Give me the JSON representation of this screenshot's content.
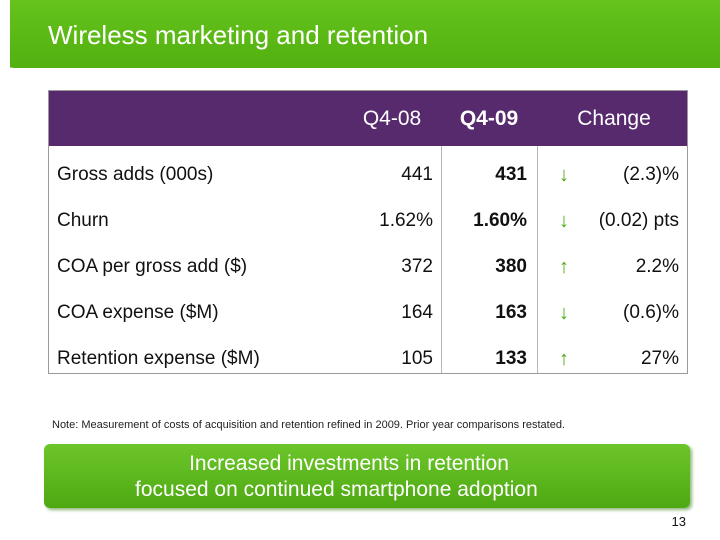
{
  "slide": {
    "title": "Wireless marketing and retention",
    "page_number": "13"
  },
  "table": {
    "headers": {
      "col1": "Q4-08",
      "col2": "Q4-09",
      "col3": "Change"
    },
    "rows": [
      {
        "label": "Gross adds (000s)",
        "q408": "441",
        "q409": "431",
        "arrow": "down",
        "change": "(2.3)%"
      },
      {
        "label": "Churn",
        "q408": "1.62%",
        "q409": "1.60%",
        "arrow": "down",
        "change": "(0.02) pts"
      },
      {
        "label": "COA per gross add ($)",
        "q408": "372",
        "q409": "380",
        "arrow": "up",
        "change": "2.2%"
      },
      {
        "label": "COA expense ($M)",
        "q408": "164",
        "q409": "163",
        "arrow": "down",
        "change": "(0.6)%"
      },
      {
        "label": "Retention expense ($M)",
        "q408": "105",
        "q409": "133",
        "arrow": "up",
        "change": "27%"
      }
    ]
  },
  "note": "Note: Measurement of costs of acquisition and retention refined in 2009. Prior year comparisons restated.",
  "callout": {
    "line1": "Increased investments in retention",
    "line2": "focused on continued smartphone adoption"
  },
  "colors": {
    "title_green": "#5ab816",
    "header_purple": "#572a6e",
    "arrow_green": "#4aa70f"
  }
}
